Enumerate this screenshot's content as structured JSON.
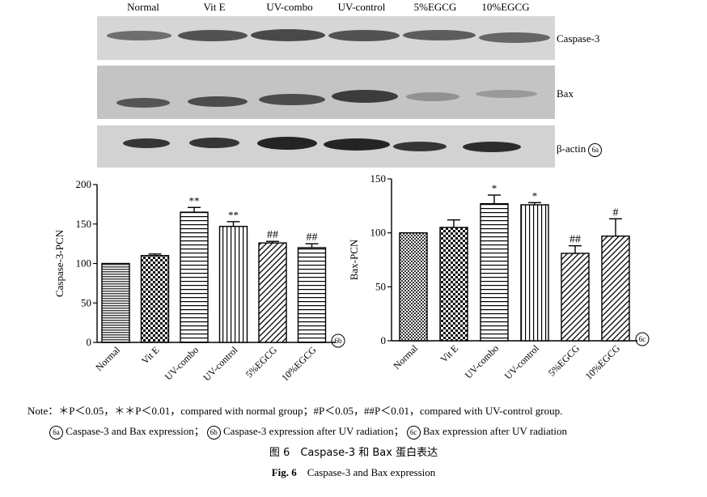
{
  "blot": {
    "columns": [
      "Normal",
      "Vit E",
      "UV-combo",
      "UV-control",
      "5%EGCG",
      "10%EGCG"
    ],
    "rows": [
      {
        "label": "Caspase-3",
        "marker": ""
      },
      {
        "label": "Bax",
        "marker": ""
      },
      {
        "label": "β-actin",
        "marker": "6a"
      }
    ]
  },
  "chart_data": [
    {
      "type": "bar",
      "marker": "6b",
      "categories": [
        "Normal",
        "Vit E",
        "UV-combo",
        "UV-control",
        "5%EGCG",
        "10%EGCG"
      ],
      "values": [
        100,
        110,
        165,
        147,
        126,
        120
      ],
      "errors": [
        0,
        2,
        6,
        6,
        2,
        5
      ],
      "significance": [
        "",
        "",
        "**",
        "**",
        "##",
        "##"
      ],
      "xlabel": "",
      "ylabel": "Caspase-3-PCN",
      "ylim": [
        0,
        200
      ],
      "yticks": [
        0,
        50,
        100,
        150,
        200
      ],
      "patterns": [
        "hstripe",
        "checker",
        "hline",
        "vline",
        "diag",
        "hline"
      ],
      "grid": false
    },
    {
      "type": "bar",
      "marker": "6c",
      "categories": [
        "Normal",
        "Vit E",
        "UV-combo",
        "UV-control",
        "5%EGCG",
        "10%EGCG"
      ],
      "values": [
        100,
        105,
        127,
        126,
        81,
        97
      ],
      "errors": [
        0,
        7,
        8,
        2,
        7,
        16
      ],
      "significance": [
        "",
        "",
        "*",
        "*",
        "##",
        "#"
      ],
      "xlabel": "",
      "ylabel": "Bax-PCN",
      "ylim": [
        0,
        150
      ],
      "yticks": [
        0,
        50,
        100,
        150
      ],
      "patterns": [
        "dots",
        "checker",
        "hline",
        "vline",
        "diag",
        "diag"
      ],
      "grid": false
    }
  ],
  "notes": {
    "line1": "Note：＊P＜0.05，＊＊P＜0.01，compared with normal group；#P＜0.05，##P＜0.01，compared with UV-control group.",
    "line2_a_marker": "6a",
    "line2_a": "Caspase-3 and Bax expression；",
    "line2_b_marker": "6b",
    "line2_b": "Caspase-3 expression after UV radiation；",
    "line2_c_marker": "6c",
    "line2_c": "Bax expression after UV radiation"
  },
  "caption_cn": "图 6　Caspase-3 和 Bax 蛋白表达",
  "caption_en_bold": "Fig. 6",
  "caption_en": "　Caspase-3 and Bax expression"
}
